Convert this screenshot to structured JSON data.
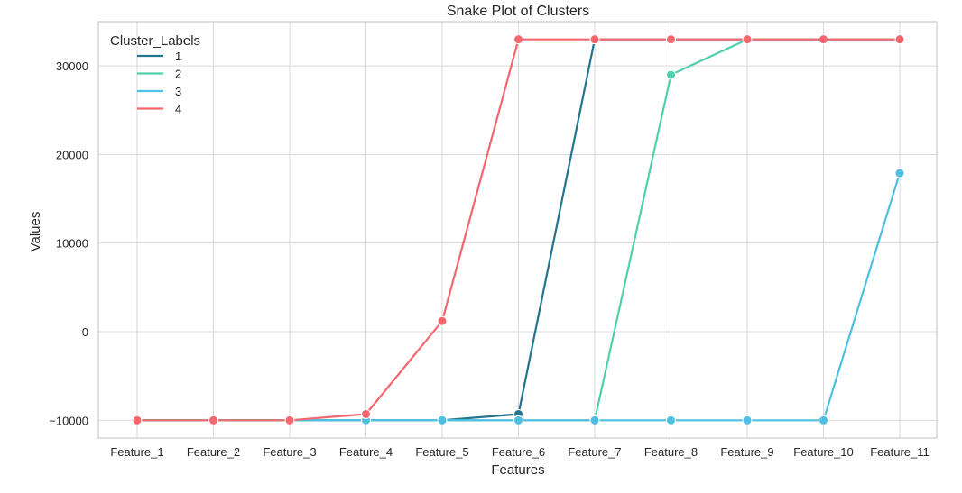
{
  "chart_data": {
    "type": "line",
    "title": "Snake Plot of Clusters",
    "xlabel": "Features",
    "ylabel": "Values",
    "categories": [
      "Feature_1",
      "Feature_2",
      "Feature_3",
      "Feature_4",
      "Feature_5",
      "Feature_6",
      "Feature_7",
      "Feature_8",
      "Feature_9",
      "Feature_10",
      "Feature_11"
    ],
    "ylim": [
      -12000,
      35000
    ],
    "yticks": [
      -10000,
      0,
      10000,
      20000,
      30000
    ],
    "ytick_labels": [
      "−10000",
      "0",
      "10000",
      "20000",
      "30000"
    ],
    "grid": true,
    "legend": {
      "title": "Cluster_Labels",
      "position": "top-left"
    },
    "series": [
      {
        "name": "1",
        "color": "#23748f",
        "values": [
          -10000,
          -10000,
          -10000,
          -10000,
          -10000,
          -9300,
          33000,
          33000,
          33000,
          33000,
          33000
        ]
      },
      {
        "name": "2",
        "color": "#4fcfae",
        "values": [
          -10000,
          -10000,
          -10000,
          -10000,
          -10000,
          -10000,
          -10000,
          29000,
          33000,
          33000,
          33000
        ]
      },
      {
        "name": "3",
        "color": "#4ebfe3",
        "values": [
          -10000,
          -10000,
          -10000,
          -10000,
          -10000,
          -10000,
          -10000,
          -10000,
          -10000,
          -10000,
          17900
        ]
      },
      {
        "name": "4",
        "color": "#f4676f",
        "values": [
          -10000,
          -10000,
          -10000,
          -9300,
          1200,
          33000,
          33000,
          33000,
          33000,
          33000,
          33000
        ]
      }
    ]
  }
}
